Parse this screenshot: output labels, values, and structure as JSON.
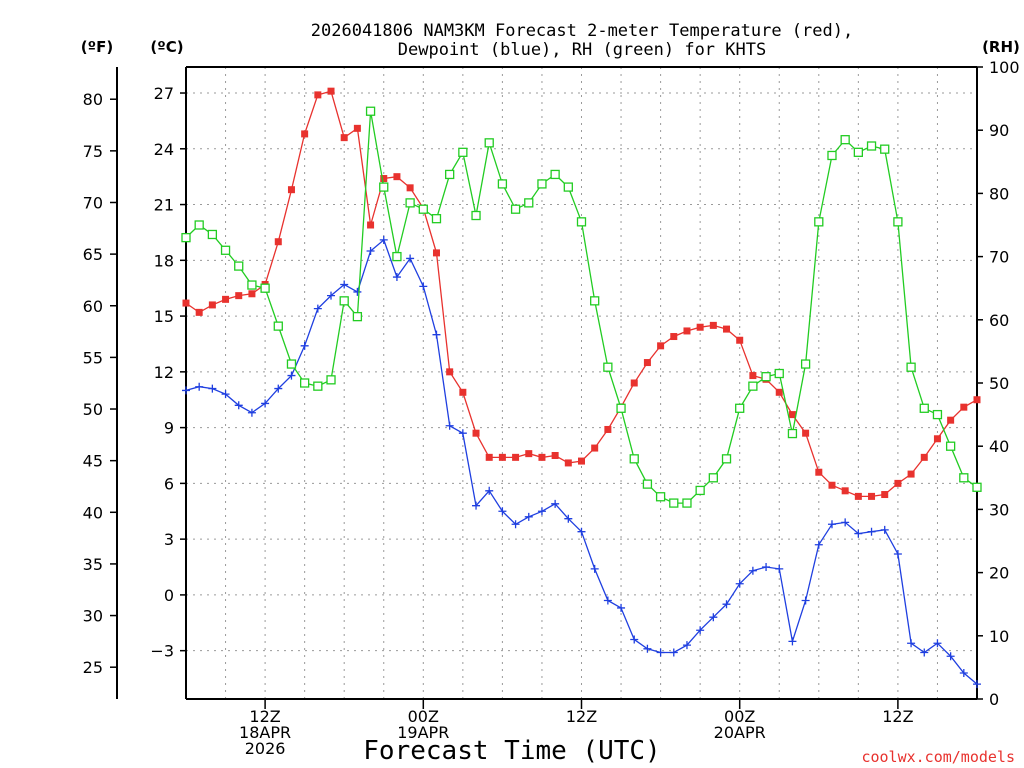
{
  "chart_data": {
    "type": "line",
    "title_lines": [
      "2026041806 NAM3KM Forecast 2-meter Temperature (red),",
      "Dewpoint (blue), RH (green) for KHTS"
    ],
    "xlabel": "Forecast Time (UTC)",
    "credit": "coolwx.com/models",
    "units": {
      "fahrenheit": "(ºF)",
      "celsius": "(ºC)",
      "rh": "(RH)"
    },
    "x_range_hours": [
      0,
      60
    ],
    "x_ticks": [
      {
        "hour": 6,
        "lines": [
          "12Z",
          "18APR",
          "2026"
        ]
      },
      {
        "hour": 18,
        "lines": [
          "00Z",
          "19APR"
        ]
      },
      {
        "hour": 30,
        "lines": [
          "12Z"
        ]
      },
      {
        "hour": 42,
        "lines": [
          "00Z",
          "20APR"
        ]
      },
      {
        "hour": 54,
        "lines": [
          "12Z"
        ]
      }
    ],
    "celsius_axis": {
      "range": [
        -5.6,
        28.4
      ],
      "ticks": [
        -3,
        0,
        3,
        6,
        9,
        12,
        15,
        18,
        21,
        24,
        27
      ]
    },
    "fahrenheit_axis": {
      "ticks": [
        25,
        30,
        35,
        40,
        45,
        50,
        55,
        60,
        65,
        70,
        75,
        80
      ]
    },
    "rh_axis": {
      "range": [
        0,
        100
      ],
      "ticks": [
        0,
        10,
        20,
        30,
        40,
        50,
        60,
        70,
        80,
        90,
        100
      ]
    },
    "colors": {
      "temperature": "#e8322e",
      "dewpoint": "#1f3fe0",
      "rh": "#22cc22",
      "axis": "#000000",
      "credit": "#e8322e"
    },
    "series": [
      {
        "name": "2-meter Temperature",
        "unit": "C",
        "marker": "filled-square",
        "values": [
          15.7,
          15.2,
          15.6,
          15.9,
          16.1,
          16.2,
          16.7,
          19.0,
          21.8,
          24.8,
          26.9,
          27.1,
          24.6,
          25.1,
          19.9,
          22.4,
          22.5,
          21.9,
          20.8,
          18.4,
          12.0,
          10.9,
          8.7,
          7.4,
          7.4,
          7.4,
          7.6,
          7.4,
          7.5,
          7.1,
          7.2,
          7.9,
          8.9,
          10.1,
          11.4,
          12.5,
          13.4,
          13.9,
          14.2,
          14.4,
          14.5,
          14.3,
          13.7,
          11.8,
          11.6,
          10.9,
          9.7,
          8.7,
          6.6,
          5.9,
          5.6,
          5.3,
          5.3,
          5.4,
          6.0,
          6.5,
          7.4,
          8.4,
          9.4,
          10.1,
          10.5
        ]
      },
      {
        "name": "Dewpoint",
        "unit": "C",
        "marker": "plus",
        "values": [
          11.0,
          11.2,
          11.1,
          10.8,
          10.2,
          9.8,
          10.3,
          11.1,
          11.8,
          13.4,
          15.4,
          16.1,
          16.7,
          16.3,
          18.5,
          19.1,
          17.1,
          18.1,
          16.6,
          14.0,
          9.1,
          8.7,
          4.8,
          5.6,
          4.5,
          3.8,
          4.2,
          4.5,
          4.9,
          4.1,
          3.4,
          1.4,
          -0.3,
          -0.7,
          -2.4,
          -2.9,
          -3.1,
          -3.1,
          -2.7,
          -1.9,
          -1.2,
          -0.5,
          0.6,
          1.3,
          1.5,
          1.4,
          -2.5,
          -0.3,
          2.7,
          3.8,
          3.9,
          3.3,
          3.4,
          3.5,
          2.2,
          -2.6,
          -3.1,
          -2.6,
          -3.3,
          -4.2,
          -4.8
        ]
      },
      {
        "name": "RH",
        "unit": "%",
        "marker": "open-square",
        "values": [
          73.0,
          75.0,
          73.5,
          71.0,
          68.5,
          65.5,
          65.0,
          59.0,
          53.0,
          50.0,
          49.5,
          50.5,
          63.0,
          60.5,
          93.0,
          81.0,
          70.0,
          78.5,
          77.5,
          76.0,
          83.0,
          86.5,
          76.5,
          88.0,
          81.5,
          77.5,
          78.5,
          81.5,
          83.0,
          81.0,
          75.5,
          63.0,
          52.5,
          46.0,
          38.0,
          34.0,
          32.0,
          31.0,
          31.0,
          33.0,
          35.0,
          38.0,
          46.0,
          49.5,
          51.0,
          51.5,
          42.0,
          53.0,
          75.5,
          86.0,
          88.5,
          86.5,
          87.5,
          87.0,
          75.5,
          52.5,
          46.0,
          45.0,
          40.0,
          35.0,
          33.5
        ]
      }
    ]
  }
}
